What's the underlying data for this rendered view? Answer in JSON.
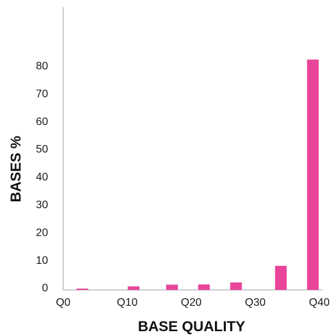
{
  "chart_data": {
    "type": "bar",
    "xlabel": "BASE QUALITY",
    "ylabel": "BASES %",
    "x_ticks": [
      "Q0",
      "Q10",
      "Q20",
      "Q30",
      "Q40"
    ],
    "x_tick_values": [
      0,
      10,
      20,
      30,
      40
    ],
    "y_ticks": [
      "0",
      "10",
      "20",
      "30",
      "40",
      "50",
      "60",
      "70",
      "80"
    ],
    "y_tick_values": [
      0,
      10,
      20,
      30,
      40,
      50,
      60,
      70,
      80
    ],
    "xlim": [
      0,
      40
    ],
    "ylim": [
      0,
      100
    ],
    "grid": false,
    "legend": "none",
    "bar_color": "#e8459a",
    "bars": [
      {
        "x": 3,
        "value": 0.5
      },
      {
        "x": 11,
        "value": 1.3
      },
      {
        "x": 17,
        "value": 1.9
      },
      {
        "x": 22,
        "value": 2.0
      },
      {
        "x": 27,
        "value": 2.7
      },
      {
        "x": 34,
        "value": 8.7
      },
      {
        "x": 39,
        "value": 83
      }
    ]
  }
}
